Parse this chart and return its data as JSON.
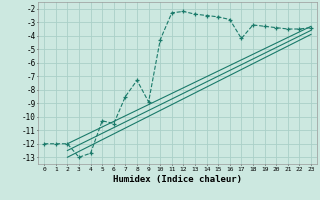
{
  "xlabel": "Humidex (Indice chaleur)",
  "bg_color": "#cce8e0",
  "grid_color": "#aad0c8",
  "line_color": "#1a7a6a",
  "xlim": [
    -0.5,
    23.5
  ],
  "ylim": [
    -13.5,
    -1.5
  ],
  "yticks": [
    -2,
    -3,
    -4,
    -5,
    -6,
    -7,
    -8,
    -9,
    -10,
    -11,
    -12,
    -13
  ],
  "xticks": [
    0,
    1,
    2,
    3,
    4,
    5,
    6,
    7,
    8,
    9,
    10,
    11,
    12,
    13,
    14,
    15,
    16,
    17,
    18,
    19,
    20,
    21,
    22,
    23
  ],
  "main_x": [
    0,
    1,
    2,
    3,
    4,
    5,
    6,
    7,
    8,
    9,
    10,
    11,
    12,
    13,
    14,
    15,
    16,
    17,
    18,
    19,
    20,
    21,
    22,
    23
  ],
  "main_y": [
    -12,
    -12,
    -12,
    -13,
    -12.7,
    -10.3,
    -10.5,
    -8.5,
    -7.3,
    -8.9,
    -4.3,
    -2.3,
    -2.2,
    -2.4,
    -2.5,
    -2.6,
    -2.8,
    -4.2,
    -3.2,
    -3.3,
    -3.4,
    -3.5,
    -3.5,
    -3.4
  ],
  "trend1_x": [
    2,
    23
  ],
  "trend1_y": [
    -12.0,
    -3.3
  ],
  "trend2_x": [
    2,
    23
  ],
  "trend2_y": [
    -12.5,
    -3.6
  ],
  "trend3_x": [
    2,
    23
  ],
  "trend3_y": [
    -13.0,
    -3.9
  ]
}
